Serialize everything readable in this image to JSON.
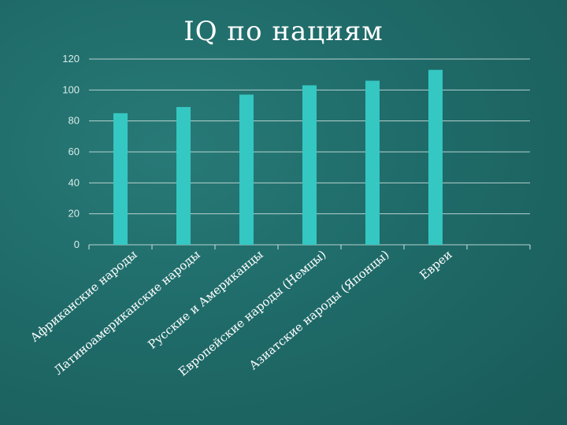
{
  "colors": {
    "background": "#1e6a68",
    "bar": "#35c7c2",
    "grid": "#cfe3e1"
  },
  "chart_data": {
    "type": "bar",
    "title": "IQ по нациям",
    "categories": [
      "Африканские народы",
      "Латиноамериканские народы",
      "Русские и Американцы",
      "Европейские народы (Немцы)",
      "Азиатские народы (Японцы)",
      "Евреи"
    ],
    "values": [
      85,
      89,
      97,
      103,
      106,
      113
    ],
    "ylim": [
      0,
      120
    ],
    "yticks": [
      "0",
      "20",
      "40",
      "60",
      "80",
      "100",
      "120"
    ],
    "grid": true,
    "legend": "none"
  }
}
